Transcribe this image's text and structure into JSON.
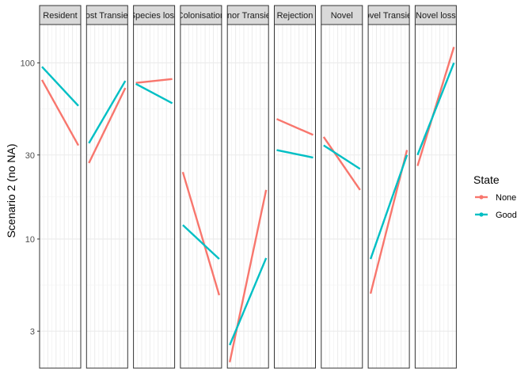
{
  "chart_data": {
    "type": "line",
    "ylabel": "Scenario 2 (no NA)",
    "yscale": "log",
    "ylim": [
      1.85,
      165
    ],
    "yticks": [
      3,
      10,
      30,
      100
    ],
    "ytick_labels": [
      "3",
      "10",
      "30",
      "100"
    ],
    "grid": true,
    "legend": {
      "title": "State",
      "position": "right",
      "entries": [
        "None",
        "Good"
      ]
    },
    "colors": {
      "None": "#F8766D",
      "Good": "#00BFC4"
    },
    "facets": [
      {
        "label": "Resident",
        "series": [
          {
            "name": "None",
            "values": [
              80,
              34
            ]
          },
          {
            "name": "Good",
            "values": [
              95,
              57
            ]
          }
        ]
      },
      {
        "label": "Host Transient",
        "series": [
          {
            "name": "None",
            "values": [
              27,
              72
            ]
          },
          {
            "name": "Good",
            "values": [
              35,
              79
            ]
          }
        ]
      },
      {
        "label": "Species loss",
        "series": [
          {
            "name": "None",
            "values": [
              77,
              81
            ]
          },
          {
            "name": "Good",
            "values": [
              76,
              59
            ]
          }
        ]
      },
      {
        "label": "Colonisation",
        "series": [
          {
            "name": "None",
            "values": [
              24,
              4.8
            ]
          },
          {
            "name": "Good",
            "values": [
              12,
              7.7
            ]
          }
        ]
      },
      {
        "label": "Minor Transient",
        "series": [
          {
            "name": "None",
            "values": [
              2.0,
              19
            ]
          },
          {
            "name": "Good",
            "values": [
              2.5,
              7.8
            ]
          }
        ]
      },
      {
        "label": "Rejection",
        "series": [
          {
            "name": "None",
            "values": [
              48,
              39
            ]
          },
          {
            "name": "Good",
            "values": [
              32,
              29
            ]
          }
        ]
      },
      {
        "label": "Novel",
        "series": [
          {
            "name": "None",
            "values": [
              38,
              19
            ]
          },
          {
            "name": "Good",
            "values": [
              34,
              25
            ]
          }
        ]
      },
      {
        "label": "Novel Transient",
        "series": [
          {
            "name": "None",
            "values": [
              4.9,
              32
            ]
          },
          {
            "name": "Good",
            "values": [
              7.7,
              30
            ]
          }
        ]
      },
      {
        "label": "Novel loss",
        "series": [
          {
            "name": "None",
            "values": [
              26,
              123
            ]
          },
          {
            "name": "Good",
            "values": [
              30,
              100
            ]
          }
        ]
      }
    ]
  }
}
